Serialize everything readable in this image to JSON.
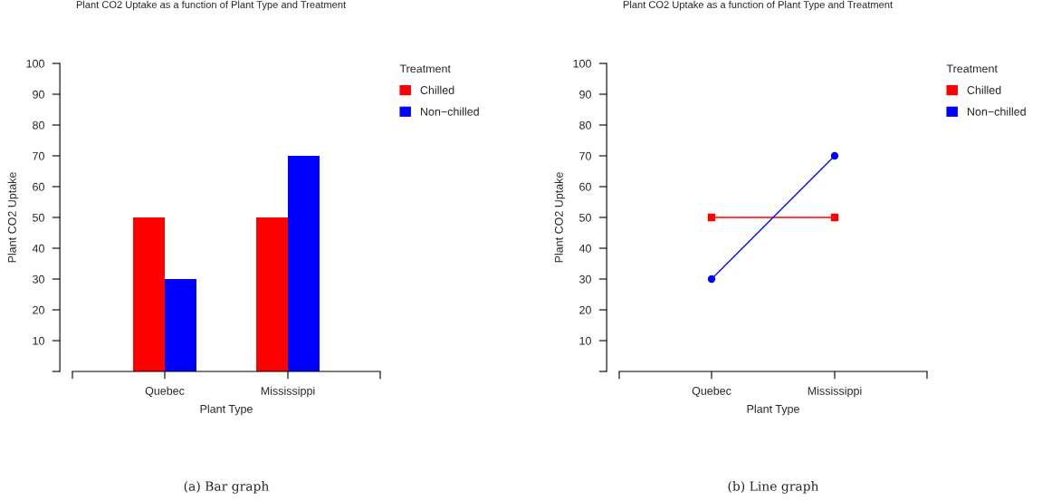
{
  "chart_data": [
    {
      "type": "bar",
      "title": "Plant CO2 Uptake as a function of Plant Type and Treatment",
      "xlabel": "Plant Type",
      "ylabel": "Plant CO2 Uptake",
      "legend_title": "Treatment",
      "legend": "right",
      "grid": false,
      "categories": [
        "Quebec",
        "Mississippi"
      ],
      "series": [
        {
          "name": "Chilled",
          "color": "#ff0000",
          "values": [
            50,
            50
          ]
        },
        {
          "name": "Non−chilled",
          "color": "#0000ff",
          "values": [
            30,
            70
          ]
        }
      ],
      "ylim": [
        0,
        100
      ],
      "yticks": [
        {
          "value": 0,
          "label": null
        },
        10,
        20,
        30,
        40,
        50,
        60,
        70,
        80,
        90,
        100
      ],
      "annotations": [
        "(a) Bar graph"
      ]
    },
    {
      "type": "line",
      "title": "Plant CO2 Uptake as a function of Plant Type and Treatment",
      "xlabel": "Plant Type",
      "ylabel": "Plant CO2 Uptake",
      "legend_title": "Treatment",
      "legend": "right",
      "grid": false,
      "categories": [
        "Quebec",
        "Mississippi"
      ],
      "series": [
        {
          "name": "Chilled",
          "color": "#ff0000",
          "values": [
            50,
            50
          ],
          "marker": "square"
        },
        {
          "name": "Non−chilled",
          "color": "#0000ff",
          "values": [
            30,
            70
          ],
          "marker": "circle"
        }
      ],
      "ylim": [
        0,
        100
      ],
      "yticks": [
        {
          "value": 0,
          "label": null
        },
        10,
        20,
        30,
        40,
        50,
        60,
        70,
        80,
        90,
        100
      ],
      "annotations": [
        "(b) Line graph"
      ]
    }
  ]
}
